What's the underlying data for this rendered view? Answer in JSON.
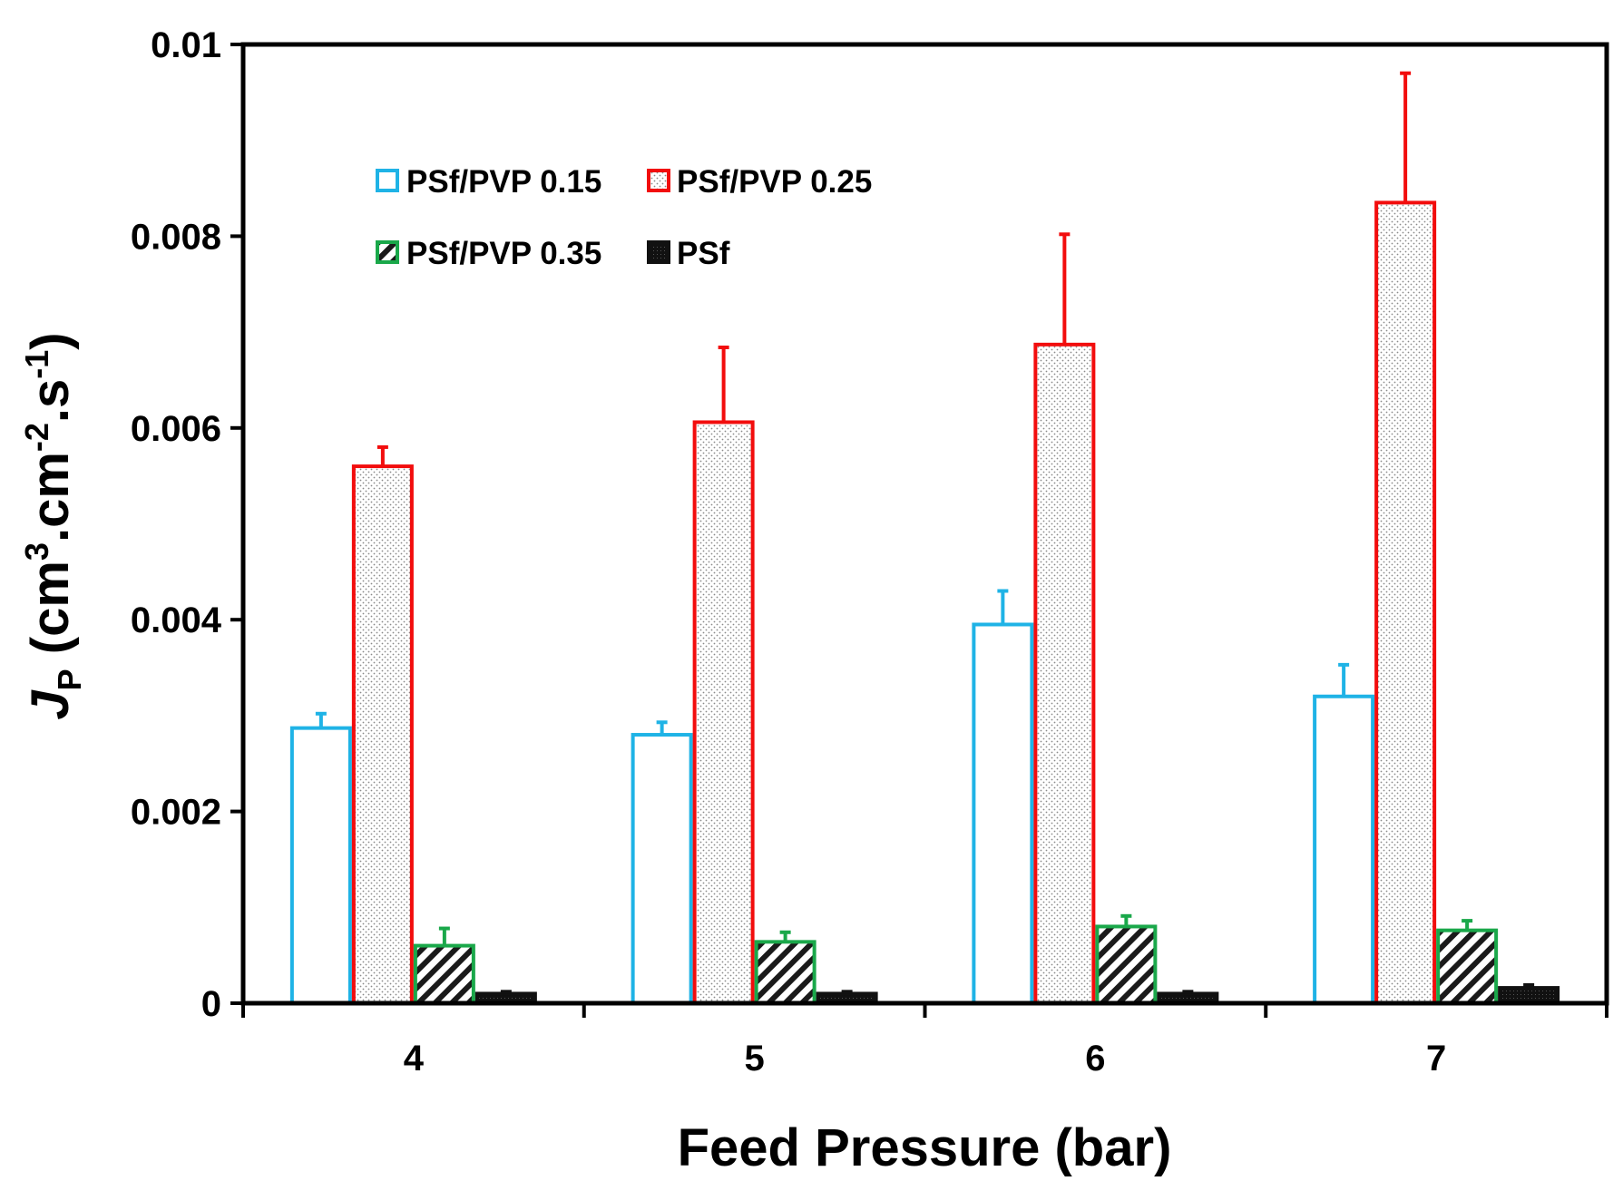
{
  "chart_data": {
    "type": "bar",
    "title": "",
    "xlabel": "Feed Pressure (bar)",
    "ylabel": {
      "symbol": "J",
      "symbol_sub": "P",
      "units_open": "(cm",
      "units_sup1": "3",
      "units_mid1": ".cm",
      "units_sup2": "-2",
      "units_mid2": ".s",
      "units_sup3": "-1",
      "units_close": ")"
    },
    "categories": [
      "4",
      "5",
      "6",
      "7"
    ],
    "ylim": [
      0,
      0.01
    ],
    "yticks": [
      0,
      0.002,
      0.004,
      0.006,
      0.008,
      0.01
    ],
    "ytick_labels": [
      "0",
      "0.002",
      "0.004",
      "0.006",
      "0.008",
      "0.01"
    ],
    "grid": false,
    "legend_position": "top-left",
    "series": [
      {
        "name": "PSf/PVP 0.15",
        "values": [
          0.00287,
          0.0028,
          0.00395,
          0.0032
        ],
        "errors": [
          0.00015,
          0.00013,
          0.00035,
          0.00033
        ],
        "color": "#1fb3e6",
        "fill": "none"
      },
      {
        "name": "PSf/PVP 0.25",
        "values": [
          0.0056,
          0.00606,
          0.00687,
          0.00835
        ],
        "errors": [
          0.0002,
          0.00078,
          0.00115,
          0.00135
        ],
        "color": "#f20d0d",
        "fill": "dots"
      },
      {
        "name": "PSf/PVP 0.35",
        "values": [
          0.0006,
          0.00064,
          0.0008,
          0.00076
        ],
        "errors": [
          0.00018,
          0.0001,
          0.00011,
          0.0001
        ],
        "color": "#1aa84a",
        "fill": "hatch"
      },
      {
        "name": "PSf",
        "values": [
          0.0001,
          0.0001,
          0.0001,
          0.00016
        ],
        "errors": [
          2e-05,
          2e-05,
          2e-05,
          3e-05
        ],
        "color": "#111111",
        "fill": "solid"
      }
    ]
  }
}
